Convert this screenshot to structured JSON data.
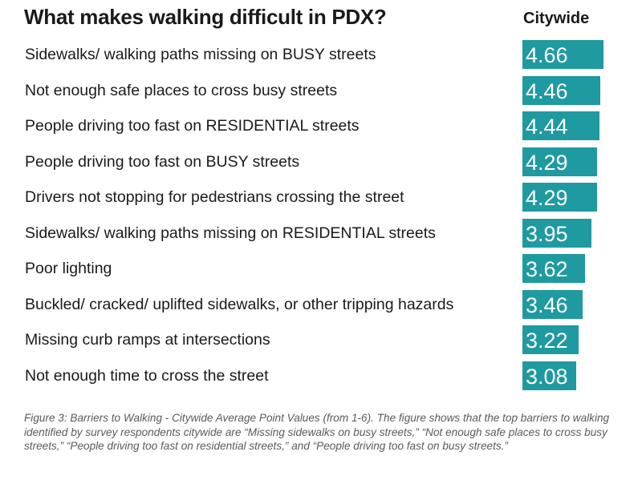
{
  "header": {
    "title": "What makes walking difficult in PDX?",
    "column_label": "Citywide"
  },
  "caption": "Figure 3: Barriers to Walking - Citywide Average Point Values (from 1-6). The figure shows that the top barriers to walking identified by survey respondents citywide are “Missing sidewalks on busy streets,” “Not enough safe places to cross busy streets,” “People driving too fast on residential streets,” and “People driving too fast on busy streets.”",
  "colors": {
    "bar": "#1f9aa0",
    "value_text": "#ffffff"
  },
  "chart_data": {
    "type": "bar",
    "orientation": "horizontal",
    "title": "What makes walking difficult in PDX?",
    "series": [
      {
        "name": "Citywide",
        "values": [
          4.66,
          4.46,
          4.44,
          4.29,
          4.29,
          3.95,
          3.62,
          3.46,
          3.22,
          3.08
        ]
      }
    ],
    "categories": [
      "Sidewalks/ walking paths missing on BUSY streets",
      "Not enough safe places to cross busy streets",
      "People driving too fast on RESIDENTIAL streets",
      "People driving too fast on BUSY streets",
      "Drivers not stopping for pedestrians crossing the street",
      "Sidewalks/ walking paths missing on RESIDENTIAL streets",
      "Poor lighting",
      "Buckled/ cracked/ uplifted sidewalks, or other tripping hazards",
      "Missing curb ramps at intersections",
      "Not enough time to cross the street"
    ],
    "value_labels": [
      "4.66",
      "4.46",
      "4.44",
      "4.29",
      "4.29",
      "3.95",
      "3.62",
      "3.46",
      "3.22",
      "3.08"
    ],
    "xlim": [
      0,
      6
    ],
    "grid": false,
    "legend": "none"
  }
}
